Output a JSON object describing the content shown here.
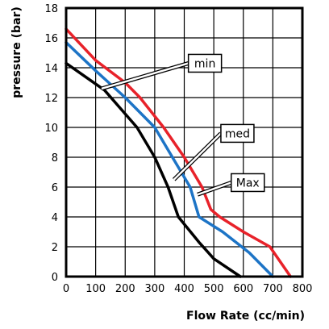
{
  "chart_data": {
    "type": "line",
    "title": "",
    "xlabel": "Flow Rate (cc/min)",
    "ylabel": "pressure (bar)",
    "xlim": [
      0,
      800
    ],
    "ylim": [
      0,
      18
    ],
    "x_ticks": [
      0,
      100,
      200,
      300,
      400,
      500,
      600,
      700,
      800
    ],
    "y_ticks": [
      0,
      2,
      4,
      6,
      8,
      10,
      12,
      14,
      16,
      18
    ],
    "grid": true,
    "legend": "none",
    "series": [
      {
        "name": "min",
        "color": "#000000",
        "points": [
          [
            0,
            14.3
          ],
          [
            130,
            12.5
          ],
          [
            240,
            10
          ],
          [
            300,
            8
          ],
          [
            345,
            6
          ],
          [
            380,
            4
          ],
          [
            450,
            2.3
          ],
          [
            500,
            1.2
          ],
          [
            590,
            0
          ]
        ]
      },
      {
        "name": "med",
        "color": "#1d74c6",
        "points": [
          [
            0,
            15.7
          ],
          [
            100,
            13.8
          ],
          [
            200,
            12
          ],
          [
            250,
            11
          ],
          [
            300,
            10
          ],
          [
            360,
            8
          ],
          [
            420,
            6
          ],
          [
            450,
            4
          ],
          [
            530,
            3
          ],
          [
            620,
            1.6
          ],
          [
            700,
            0
          ]
        ]
      },
      {
        "name": "Max",
        "color": "#e8222a",
        "points": [
          [
            0,
            16.6
          ],
          [
            100,
            14.5
          ],
          [
            200,
            13
          ],
          [
            250,
            12
          ],
          [
            330,
            10
          ],
          [
            400,
            8
          ],
          [
            460,
            6
          ],
          [
            490,
            4.5
          ],
          [
            520,
            4
          ],
          [
            600,
            3
          ],
          [
            690,
            2
          ],
          [
            760,
            0
          ]
        ]
      }
    ],
    "annotations": [
      {
        "text": "min",
        "series": "min",
        "anchor": [
          120,
          12.6
        ],
        "label_at": [
          470,
          14.3
        ]
      },
      {
        "text": "med",
        "series": "med",
        "anchor": [
          365,
          6.5
        ],
        "label_at": [
          580,
          9.6
        ]
      },
      {
        "text": "Max",
        "series": "Max",
        "anchor": [
          445,
          5.5
        ],
        "label_at": [
          615,
          6.3
        ]
      }
    ]
  }
}
